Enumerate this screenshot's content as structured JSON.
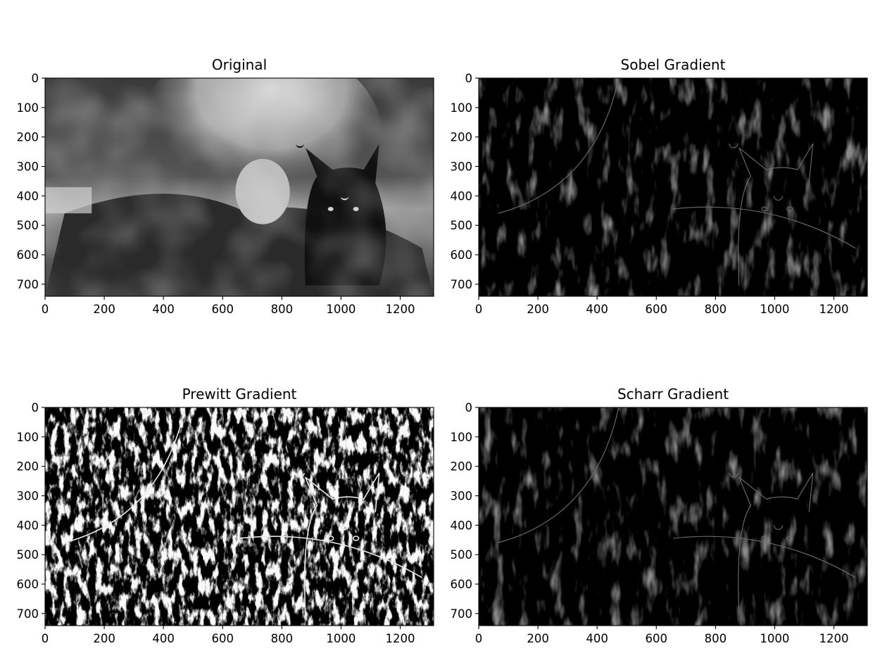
{
  "chart_data": [
    {
      "type": "heatmap",
      "title": "Original",
      "colormap": "gray",
      "content": "grayscale anime illustration",
      "xlim": [
        0,
        1313
      ],
      "ylim": [
        741,
        0
      ],
      "x_ticks": [
        0,
        200,
        400,
        600,
        800,
        1000,
        1200
      ],
      "y_ticks": [
        0,
        100,
        200,
        300,
        400,
        500,
        600,
        700
      ]
    },
    {
      "type": "heatmap",
      "title": "Sobel Gradient",
      "colormap": "gray",
      "content": "edge magnitude map",
      "xlim": [
        0,
        1313
      ],
      "ylim": [
        741,
        0
      ],
      "x_ticks": [
        0,
        200,
        400,
        600,
        800,
        1000,
        1200
      ],
      "y_ticks": [
        0,
        100,
        200,
        300,
        400,
        500,
        600,
        700
      ]
    },
    {
      "type": "heatmap",
      "title": "Prewitt Gradient",
      "colormap": "gray",
      "content": "edge magnitude map (high contrast)",
      "xlim": [
        0,
        1313
      ],
      "ylim": [
        741,
        0
      ],
      "x_ticks": [
        0,
        200,
        400,
        600,
        800,
        1000,
        1200
      ],
      "y_ticks": [
        0,
        100,
        200,
        300,
        400,
        500,
        600,
        700
      ]
    },
    {
      "type": "heatmap",
      "title": "Scharr Gradient",
      "colormap": "gray",
      "content": "edge magnitude map",
      "xlim": [
        0,
        1313
      ],
      "ylim": [
        741,
        0
      ],
      "x_ticks": [
        0,
        200,
        400,
        600,
        800,
        1000,
        1200
      ],
      "y_ticks": [
        0,
        100,
        200,
        300,
        400,
        500,
        600,
        700
      ]
    }
  ]
}
